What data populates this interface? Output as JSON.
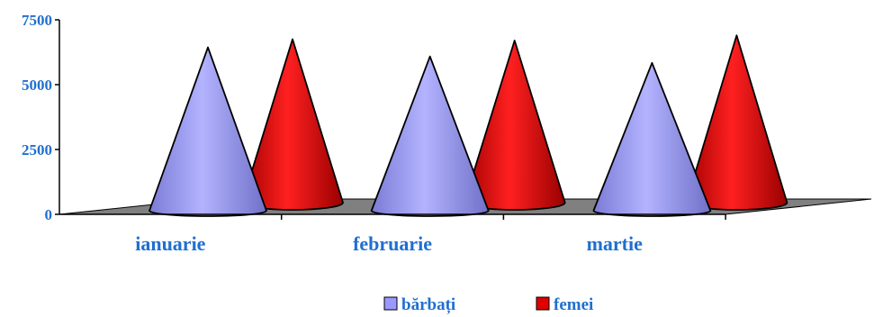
{
  "chart_data": {
    "type": "bar",
    "subtype": "3d-cone",
    "categories": [
      "ianuarie",
      "februarie",
      "martie"
    ],
    "series": [
      {
        "name": "bărbați",
        "values": [
          6300,
          5950,
          5700
        ],
        "color": "#9999ff"
      },
      {
        "name": "femei",
        "values": [
          6300,
          6250,
          6450
        ],
        "color": "#e00000"
      }
    ],
    "ylim": [
      0,
      7500
    ],
    "yticks": [
      "0",
      "2500",
      "5000",
      "7500"
    ],
    "title": "",
    "xlabel": "",
    "ylabel": "",
    "grid": false,
    "legend": "bottom",
    "floor_color": "#808080"
  }
}
